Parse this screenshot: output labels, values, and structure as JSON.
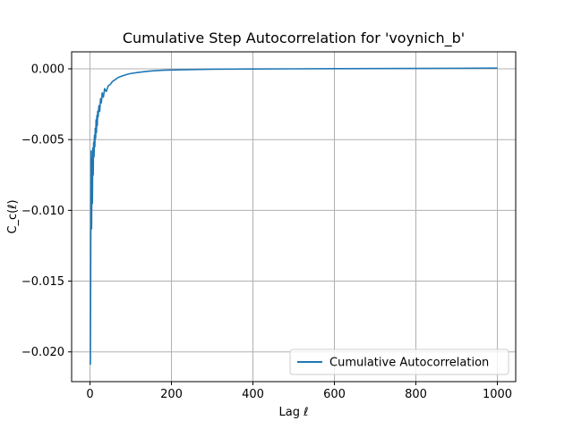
{
  "chart_data": {
    "type": "line",
    "title": "Cumulative Step Autocorrelation for 'voynich_b'",
    "xlabel": "Lag ℓ",
    "ylabel": "C_c(ℓ)",
    "xlim": [
      -45,
      1045
    ],
    "ylim": [
      -0.0221,
      0.0012
    ],
    "xticks": [
      0,
      200,
      400,
      600,
      800,
      1000
    ],
    "xtick_labels": [
      "0",
      "200",
      "400",
      "600",
      "800",
      "1000"
    ],
    "yticks": [
      0.0,
      -0.005,
      -0.01,
      -0.015,
      -0.02
    ],
    "ytick_labels": [
      "0.000",
      "−0.005",
      "−0.010",
      "−0.015",
      "−0.020"
    ],
    "grid": true,
    "legend_position": "lower-right",
    "series": [
      {
        "name": "Cumulative Autocorrelation",
        "color": "#1f77b4",
        "x": [
          1,
          2,
          3,
          4,
          5,
          6,
          7,
          8,
          9,
          10,
          11,
          12,
          13,
          14,
          15,
          16,
          17,
          18,
          19,
          20,
          22,
          24,
          26,
          28,
          30,
          33,
          36,
          40,
          45,
          50,
          55,
          60,
          70,
          80,
          90,
          100,
          120,
          140,
          160,
          180,
          200,
          250,
          300,
          350,
          400,
          500,
          600,
          700,
          800,
          900,
          1000
        ],
        "y": [
          -0.0209,
          -0.0125,
          -0.0058,
          -0.0113,
          -0.0063,
          -0.0095,
          -0.0056,
          -0.0075,
          -0.0052,
          -0.0062,
          -0.0047,
          -0.0055,
          -0.0042,
          -0.0049,
          -0.0036,
          -0.0045,
          -0.0033,
          -0.004,
          -0.003,
          -0.0034,
          -0.0026,
          -0.003,
          -0.0021,
          -0.0024,
          -0.0017,
          -0.002,
          -0.0014,
          -0.0016,
          -0.0012,
          -0.0011,
          -0.0009,
          -0.0008,
          -0.0006,
          -0.0005,
          -0.0004,
          -0.00033,
          -0.00025,
          -0.00018,
          -0.00013,
          -0.0001,
          -8e-05,
          -5e-05,
          -3e-05,
          -2e-05,
          -1e-05,
          0.0,
          1e-05,
          2e-05,
          3e-05,
          4e-05,
          5e-05
        ]
      }
    ]
  }
}
